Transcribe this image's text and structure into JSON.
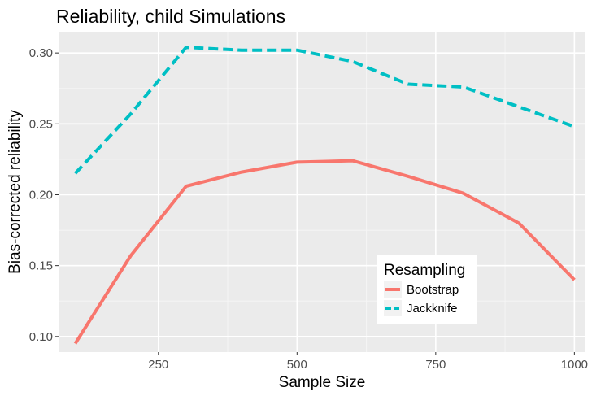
{
  "chart_data": {
    "type": "line",
    "title": "Reliability, child Simulations",
    "xlabel": "Sample Size",
    "ylabel": "Bias-corrected reliability",
    "xlim": [
      70,
      1020
    ],
    "ylim": [
      0.089,
      0.315
    ],
    "x_ticks": [
      250,
      500,
      750,
      1000
    ],
    "x_tick_labels": [
      "250",
      "500",
      "750",
      "1000"
    ],
    "x_minor": [
      125,
      375,
      625,
      875
    ],
    "y_ticks": [
      0.1,
      0.15,
      0.2,
      0.25,
      0.3
    ],
    "y_tick_labels": [
      "0.10",
      "0.15",
      "0.20",
      "0.25",
      "0.30"
    ],
    "y_minor": [
      0.125,
      0.175,
      0.225,
      0.275
    ],
    "x": [
      100,
      200,
      300,
      400,
      500,
      600,
      700,
      800,
      900,
      1000
    ],
    "series": [
      {
        "name": "Bootstrap",
        "color": "#F8766D",
        "dash": "solid",
        "values": [
          0.095,
          0.157,
          0.206,
          0.216,
          0.223,
          0.224,
          0.213,
          0.201,
          0.18,
          0.14
        ]
      },
      {
        "name": "Jackknife",
        "color": "#00BFC4",
        "dash": "dashed",
        "values": [
          0.215,
          0.257,
          0.304,
          0.302,
          0.302,
          0.294,
          0.278,
          0.276,
          0.262,
          0.248
        ]
      }
    ],
    "legend": {
      "title": "Resampling",
      "placement": "inside-bottom-right"
    },
    "grid": true
  }
}
